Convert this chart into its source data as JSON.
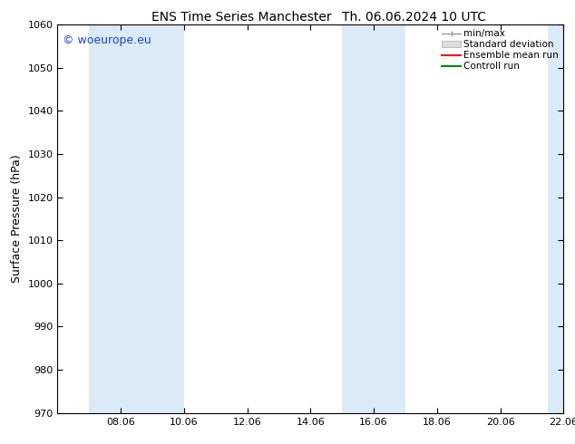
{
  "title_left": "ENS Time Series Manchester",
  "title_right": "Th. 06.06.2024 10 UTC",
  "ylabel": "Surface Pressure (hPa)",
  "ylim": [
    970,
    1060
  ],
  "yticks": [
    970,
    980,
    990,
    1000,
    1010,
    1020,
    1030,
    1040,
    1050,
    1060
  ],
  "xlim_start": 0.0,
  "xlim_end": 16.0,
  "xtick_positions": [
    2,
    4,
    6,
    8,
    10,
    12,
    14,
    16
  ],
  "xtick_labels": [
    "08.06",
    "10.06",
    "12.06",
    "14.06",
    "16.06",
    "18.06",
    "20.06",
    "22.06"
  ],
  "shaded_bands": [
    {
      "xmin": 1.0,
      "xmax": 4.0
    },
    {
      "xmin": 9.0,
      "xmax": 11.0
    },
    {
      "xmin": 15.5,
      "xmax": 16.1
    }
  ],
  "shade_color": "#daeaf7",
  "watermark_text": "© woeurope.eu",
  "watermark_color": "#1a44cc",
  "legend_labels": [
    "min/max",
    "Standard deviation",
    "Ensemble mean run",
    "Controll run"
  ],
  "legend_colors": [
    "#aaaaaa",
    "#cccccc",
    "#ff0000",
    "#008800"
  ],
  "background_color": "#ffffff",
  "axes_color": "#000000",
  "title_fontsize": 10,
  "tick_fontsize": 8,
  "ylabel_fontsize": 9,
  "watermark_fontsize": 9
}
